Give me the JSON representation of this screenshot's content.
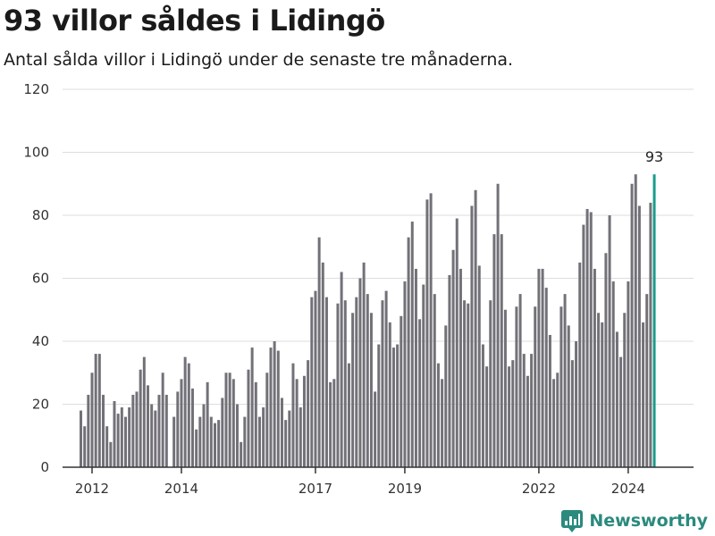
{
  "brand": {
    "name": "Newsworthy"
  },
  "colors": {
    "bar": "#737178",
    "highlight": "#1a9b8c",
    "brand": "#2a8a7d"
  },
  "chart_data": {
    "type": "bar",
    "title": "93 villor såldes i Lidingö",
    "subtitle": "Antal sålda villor i Lidingö under de senaste tre månaderna.",
    "xlabel": "",
    "ylabel": "",
    "ylim": [
      0,
      120
    ],
    "yticks": [
      0,
      20,
      40,
      60,
      80,
      100,
      120
    ],
    "xticks": [
      "2012",
      "2014",
      "2017",
      "2019",
      "2022",
      "2024"
    ],
    "grid": true,
    "legend": "none",
    "start_month": "2011-10",
    "values": [
      18,
      13,
      23,
      30,
      36,
      36,
      23,
      13,
      8,
      21,
      17,
      19,
      16,
      19,
      23,
      24,
      31,
      35,
      26,
      20,
      18,
      23,
      30,
      23,
      0,
      16,
      24,
      28,
      35,
      33,
      25,
      12,
      16,
      20,
      27,
      16,
      14,
      15,
      22,
      30,
      30,
      28,
      20,
      8,
      16,
      31,
      38,
      27,
      16,
      19,
      30,
      38,
      40,
      37,
      22,
      15,
      18,
      33,
      28,
      19,
      29,
      34,
      54,
      56,
      73,
      65,
      54,
      27,
      28,
      52,
      62,
      53,
      33,
      49,
      54,
      60,
      65,
      55,
      49,
      24,
      39,
      53,
      56,
      46,
      38,
      39,
      48,
      59,
      73,
      78,
      63,
      47,
      58,
      85,
      87,
      55,
      33,
      28,
      45,
      61,
      69,
      79,
      63,
      53,
      52,
      83,
      88,
      64,
      39,
      32,
      53,
      74,
      90,
      74,
      50,
      32,
      34,
      51,
      55,
      36,
      29,
      36,
      51,
      63,
      63,
      57,
      42,
      28,
      30,
      51,
      55,
      45,
      34,
      40,
      65,
      77,
      82,
      81,
      63,
      49,
      46,
      68,
      80,
      59,
      43,
      35,
      49,
      59,
      90,
      93,
      83,
      46,
      55,
      84,
      93
    ],
    "annotation": {
      "label": "93"
    }
  }
}
